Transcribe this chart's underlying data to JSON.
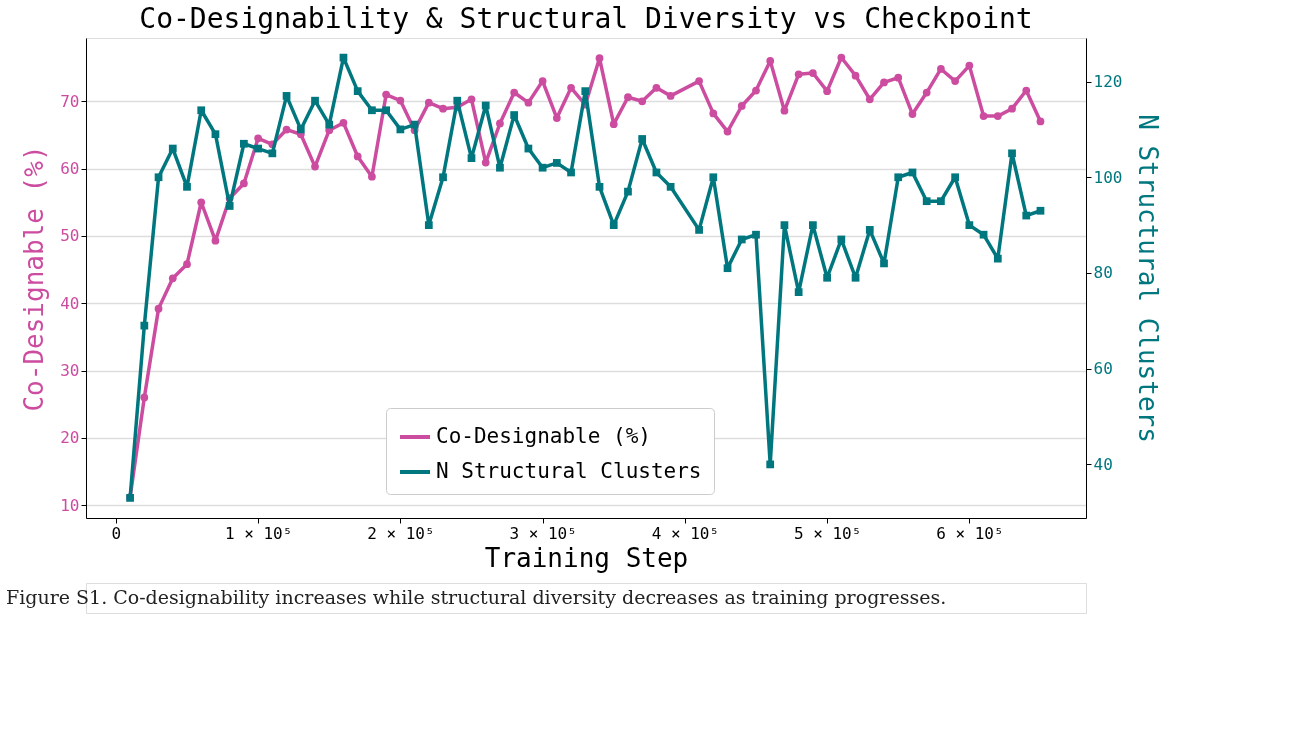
{
  "chart_data": {
    "type": "line",
    "title": "Co-Designability & Structural Diversity vs Checkpoint",
    "xlabel": "Training Step",
    "ylabel": "Co-Designable (%)",
    "y2label": "N Structural Clusters",
    "x": [
      10000,
      20000,
      30000,
      40000,
      50000,
      60000,
      70000,
      80000,
      90000,
      100000,
      110000,
      120000,
      130000,
      140000,
      150000,
      160000,
      170000,
      180000,
      190000,
      200000,
      210000,
      220000,
      230000,
      240000,
      250000,
      260000,
      270000,
      280000,
      290000,
      300000,
      310000,
      320000,
      330000,
      340000,
      350000,
      360000,
      370000,
      380000,
      390000,
      410000,
      420000,
      430000,
      440000,
      450000,
      460000,
      470000,
      480000,
      490000,
      500000,
      510000,
      520000,
      530000,
      540000,
      550000,
      560000,
      570000,
      580000,
      590000,
      600000,
      610000,
      620000,
      630000,
      640000,
      650000
    ],
    "series": [
      {
        "name": "Co-Designable (%)",
        "color": "#cc4ca0",
        "marker": "circle",
        "axis": "y",
        "values": [
          11.2,
          26,
          39.2,
          43.7,
          45.8,
          55,
          49.3,
          55.6,
          57.8,
          64.5,
          63.6,
          65.8,
          65.1,
          60.3,
          65.7,
          66.8,
          61.8,
          58.8,
          71,
          70.1,
          65.7,
          69.8,
          68.9,
          69.1,
          70.3,
          60.9,
          66.7,
          71.3,
          69.8,
          73,
          67.5,
          72,
          69.5,
          76.4,
          66.6,
          70.6,
          70,
          72,
          70.8,
          73,
          68.2,
          65.5,
          69.3,
          71.6,
          76,
          68.6,
          74,
          74.2,
          71.5,
          76.5,
          73.8,
          70.3,
          72.8,
          73.5,
          68.1,
          71.3,
          74.8,
          73,
          75.3,
          67.8,
          67.8,
          68.9,
          71.6,
          67
        ]
      },
      {
        "name": "N Structural Clusters",
        "color": "#00777f",
        "marker": "square",
        "axis": "y2",
        "values": [
          33,
          69,
          100,
          106,
          98,
          114,
          109,
          94,
          107,
          106,
          105,
          117,
          110,
          116,
          111,
          125,
          118,
          114,
          114,
          110,
          111,
          90,
          100,
          116,
          104,
          115,
          102,
          113,
          106,
          102,
          103,
          101,
          118,
          98,
          90,
          97,
          108,
          101,
          98,
          89,
          100,
          81,
          87,
          88,
          40,
          90,
          76,
          90,
          79,
          87,
          79,
          89,
          82,
          100,
          101,
          95,
          95,
          100,
          90,
          88,
          83,
          105,
          92,
          93
        ]
      }
    ],
    "xlim": [
      -21000,
      682000
    ],
    "xticks": [
      0,
      {
        "value": 100000,
        "label": "1 × 10⁵"
      },
      {
        "value": 200000,
        "label": "2 × 10⁵"
      },
      {
        "value": 300000,
        "label": "3 × 10⁵"
      },
      {
        "value": 400000,
        "label": "4 × 10⁵"
      },
      {
        "value": 500000,
        "label": "5 × 10⁵"
      },
      {
        "value": 600000,
        "label": "6 × 10⁵"
      }
    ],
    "ylim": [
      8.1,
      79.4
    ],
    "yticks": [
      10,
      20,
      30,
      40,
      50,
      60,
      70
    ],
    "y2lim": [
      28.8,
      129.1
    ],
    "y2ticks": [
      40,
      60,
      80,
      100,
      120
    ],
    "grid": "y",
    "legend": "bottom",
    "line_style": "solid",
    "annotations": [
      "Figure S1. Co-designability increases while structural diversity decreases as training progresses."
    ]
  }
}
